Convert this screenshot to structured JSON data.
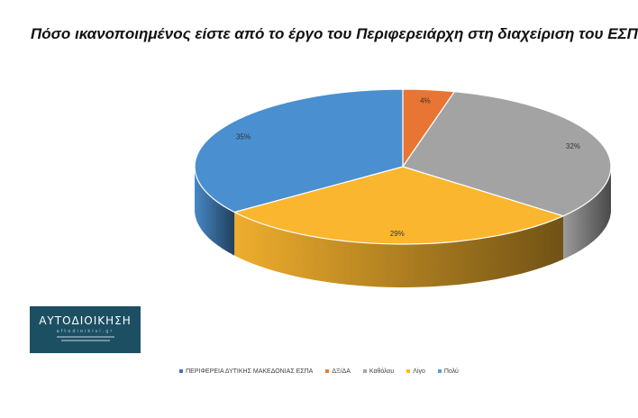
{
  "chart_data": {
    "type": "pie",
    "title": "Πόσο ικανοποιημένος είστε από το έργο του Περιφερειάρχη στη διαχείριση του ΕΣΠΑ;",
    "legend_placement": "bottom",
    "legend_entries": [
      {
        "label": "ΠΕΡΙΦΕΡΕΙΑ ΔΥΤΙΚΗΣ ΜΑΚΕΔΟΝΙΑΣ ΕΣΠΑ",
        "color": "#4472c4"
      },
      {
        "label": "ΔΞ/ΔΑ",
        "color": "#ed7d31"
      },
      {
        "label": "Καθόλου",
        "color": "#a5a5a5"
      },
      {
        "label": "Λίγο",
        "color": "#ffc000"
      },
      {
        "label": "Πολύ",
        "color": "#5b9bd5"
      }
    ],
    "slices": [
      {
        "label": "ΔΞ/ΔΑ",
        "value": 4,
        "value_label": "4%",
        "color": "#e87533"
      },
      {
        "label": "Καθόλου",
        "value": 32,
        "value_label": "32%",
        "color": "#a3a3a3"
      },
      {
        "label": "Λίγο",
        "value": 29,
        "value_label": "29%",
        "color": "#fbb62f"
      },
      {
        "label": "Πολύ",
        "value": 35,
        "value_label": "35%",
        "color": "#4a8fcf"
      }
    ]
  },
  "logo": {
    "name": "ΑΥΤΟΔΙΟΙΚΗΣΗ",
    "site": "aftodioikisi.gr"
  }
}
